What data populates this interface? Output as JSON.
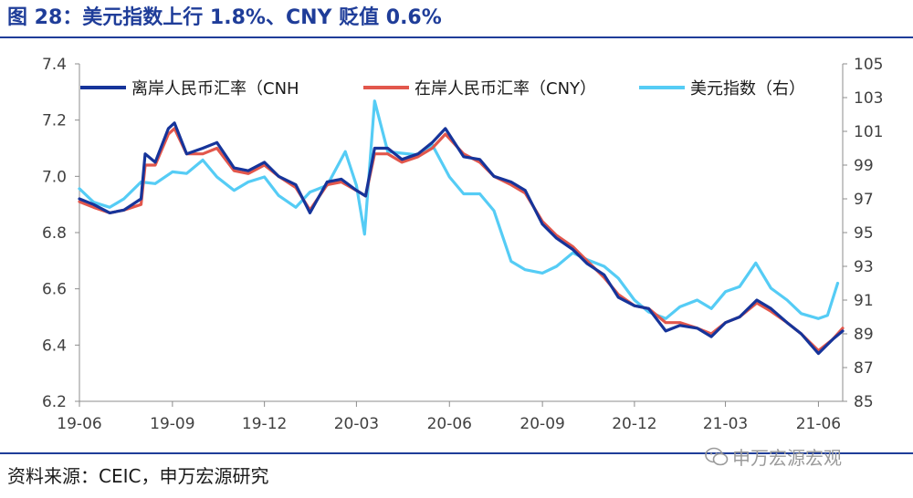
{
  "title": "图 28：美元指数上行 1.8%、CNY 贬值 0.6%",
  "source": "资料来源：CEIC，申万宏源研究",
  "watermark": "申万宏源宏观",
  "chart_data": {
    "type": "line",
    "xlim": [
      "2019-06-01",
      "2021-06-25"
    ],
    "x_ticks": [
      "19-06",
      "19-09",
      "19-12",
      "20-03",
      "20-06",
      "20-09",
      "20-12",
      "21-03",
      "21-06"
    ],
    "ylim_left": [
      6.2,
      7.4
    ],
    "y_ticks_left": [
      "6.2",
      "6.4",
      "6.6",
      "6.8",
      "7.0",
      "7.2",
      "7.4"
    ],
    "ylim_right": [
      85,
      105
    ],
    "y_ticks_right": [
      "85",
      "87",
      "89",
      "91",
      "93",
      "95",
      "97",
      "99",
      "101",
      "103",
      "105"
    ],
    "legend_position": "top",
    "grid": false,
    "series": [
      {
        "name": "离岸人民币汇率（CNH",
        "axis": "left",
        "color": "#16349a",
        "points": [
          [
            "2019-06-01",
            6.92
          ],
          [
            "2019-06-15",
            6.9
          ],
          [
            "2019-07-01",
            6.87
          ],
          [
            "2019-07-15",
            6.88
          ],
          [
            "2019-08-01",
            6.92
          ],
          [
            "2019-08-05",
            7.08
          ],
          [
            "2019-08-15",
            7.05
          ],
          [
            "2019-08-28",
            7.17
          ],
          [
            "2019-09-03",
            7.19
          ],
          [
            "2019-09-15",
            7.08
          ],
          [
            "2019-10-01",
            7.1
          ],
          [
            "2019-10-15",
            7.12
          ],
          [
            "2019-11-01",
            7.03
          ],
          [
            "2019-11-15",
            7.02
          ],
          [
            "2019-12-01",
            7.05
          ],
          [
            "2019-12-15",
            7.0
          ],
          [
            "2020-01-01",
            6.97
          ],
          [
            "2020-01-15",
            6.87
          ],
          [
            "2020-02-01",
            6.98
          ],
          [
            "2020-02-15",
            6.99
          ],
          [
            "2020-03-01",
            6.95
          ],
          [
            "2020-03-10",
            6.93
          ],
          [
            "2020-03-19",
            7.1
          ],
          [
            "2020-04-01",
            7.1
          ],
          [
            "2020-04-15",
            7.06
          ],
          [
            "2020-05-01",
            7.08
          ],
          [
            "2020-05-15",
            7.12
          ],
          [
            "2020-05-28",
            7.17
          ],
          [
            "2020-06-15",
            7.07
          ],
          [
            "2020-07-01",
            7.06
          ],
          [
            "2020-07-15",
            7.0
          ],
          [
            "2020-08-01",
            6.98
          ],
          [
            "2020-08-15",
            6.95
          ],
          [
            "2020-09-01",
            6.83
          ],
          [
            "2020-09-15",
            6.78
          ],
          [
            "2020-10-01",
            6.74
          ],
          [
            "2020-10-15",
            6.69
          ],
          [
            "2020-11-01",
            6.65
          ],
          [
            "2020-11-15",
            6.57
          ],
          [
            "2020-12-01",
            6.54
          ],
          [
            "2020-12-15",
            6.53
          ],
          [
            "2021-01-01",
            6.45
          ],
          [
            "2021-01-15",
            6.47
          ],
          [
            "2021-02-01",
            6.46
          ],
          [
            "2021-02-15",
            6.43
          ],
          [
            "2021-03-01",
            6.48
          ],
          [
            "2021-03-15",
            6.5
          ],
          [
            "2021-04-01",
            6.56
          ],
          [
            "2021-04-15",
            6.53
          ],
          [
            "2021-05-01",
            6.48
          ],
          [
            "2021-05-15",
            6.44
          ],
          [
            "2021-06-01",
            6.37
          ],
          [
            "2021-06-15",
            6.42
          ],
          [
            "2021-06-25",
            6.45
          ]
        ]
      },
      {
        "name": "在岸人民币汇率（CNY）",
        "axis": "left",
        "color": "#e2574c",
        "points": [
          [
            "2019-06-01",
            6.91
          ],
          [
            "2019-06-15",
            6.89
          ],
          [
            "2019-07-01",
            6.87
          ],
          [
            "2019-07-15",
            6.88
          ],
          [
            "2019-08-01",
            6.9
          ],
          [
            "2019-08-05",
            7.04
          ],
          [
            "2019-08-15",
            7.04
          ],
          [
            "2019-08-28",
            7.15
          ],
          [
            "2019-09-03",
            7.17
          ],
          [
            "2019-09-15",
            7.08
          ],
          [
            "2019-10-01",
            7.08
          ],
          [
            "2019-10-15",
            7.1
          ],
          [
            "2019-11-01",
            7.02
          ],
          [
            "2019-11-15",
            7.01
          ],
          [
            "2019-12-01",
            7.04
          ],
          [
            "2019-12-15",
            7.0
          ],
          [
            "2020-01-01",
            6.96
          ],
          [
            "2020-01-15",
            6.88
          ],
          [
            "2020-02-01",
            6.97
          ],
          [
            "2020-02-15",
            6.98
          ],
          [
            "2020-03-01",
            6.95
          ],
          [
            "2020-03-10",
            6.93
          ],
          [
            "2020-03-19",
            7.08
          ],
          [
            "2020-04-01",
            7.08
          ],
          [
            "2020-04-15",
            7.05
          ],
          [
            "2020-05-01",
            7.07
          ],
          [
            "2020-05-15",
            7.1
          ],
          [
            "2020-05-28",
            7.15
          ],
          [
            "2020-06-15",
            7.08
          ],
          [
            "2020-07-01",
            7.05
          ],
          [
            "2020-07-15",
            7.0
          ],
          [
            "2020-08-01",
            6.97
          ],
          [
            "2020-08-15",
            6.94
          ],
          [
            "2020-09-01",
            6.84
          ],
          [
            "2020-09-15",
            6.79
          ],
          [
            "2020-10-01",
            6.75
          ],
          [
            "2020-10-15",
            6.7
          ],
          [
            "2020-11-01",
            6.64
          ],
          [
            "2020-11-15",
            6.58
          ],
          [
            "2020-12-01",
            6.54
          ],
          [
            "2020-12-15",
            6.53
          ],
          [
            "2021-01-01",
            6.48
          ],
          [
            "2021-01-15",
            6.48
          ],
          [
            "2021-02-01",
            6.46
          ],
          [
            "2021-02-15",
            6.44
          ],
          [
            "2021-03-01",
            6.48
          ],
          [
            "2021-03-15",
            6.5
          ],
          [
            "2021-04-01",
            6.55
          ],
          [
            "2021-04-15",
            6.52
          ],
          [
            "2021-05-01",
            6.48
          ],
          [
            "2021-05-15",
            6.44
          ],
          [
            "2021-06-01",
            6.38
          ],
          [
            "2021-06-15",
            6.42
          ],
          [
            "2021-06-25",
            6.46
          ]
        ]
      },
      {
        "name": "美元指数（右）",
        "axis": "right",
        "color": "#55ccf5",
        "points": [
          [
            "2019-06-01",
            97.6
          ],
          [
            "2019-06-15",
            96.8
          ],
          [
            "2019-07-01",
            96.5
          ],
          [
            "2019-07-15",
            97.0
          ],
          [
            "2019-08-01",
            98.0
          ],
          [
            "2019-08-15",
            97.9
          ],
          [
            "2019-09-01",
            98.6
          ],
          [
            "2019-09-15",
            98.5
          ],
          [
            "2019-10-01",
            99.3
          ],
          [
            "2019-10-15",
            98.3
          ],
          [
            "2019-11-01",
            97.5
          ],
          [
            "2019-11-15",
            98.0
          ],
          [
            "2019-12-01",
            98.3
          ],
          [
            "2019-12-15",
            97.2
          ],
          [
            "2020-01-01",
            96.5
          ],
          [
            "2020-01-15",
            97.4
          ],
          [
            "2020-02-01",
            97.8
          ],
          [
            "2020-02-19",
            99.8
          ],
          [
            "2020-03-01",
            97.8
          ],
          [
            "2020-03-09",
            94.9
          ],
          [
            "2020-03-19",
            102.8
          ],
          [
            "2020-04-01",
            99.8
          ],
          [
            "2020-04-15",
            99.7
          ],
          [
            "2020-05-01",
            99.6
          ],
          [
            "2020-05-15",
            100.2
          ],
          [
            "2020-06-01",
            98.3
          ],
          [
            "2020-06-15",
            97.3
          ],
          [
            "2020-07-01",
            97.3
          ],
          [
            "2020-07-15",
            96.3
          ],
          [
            "2020-08-01",
            93.3
          ],
          [
            "2020-08-15",
            92.8
          ],
          [
            "2020-09-01",
            92.6
          ],
          [
            "2020-09-15",
            93.0
          ],
          [
            "2020-10-01",
            93.8
          ],
          [
            "2020-10-15",
            93.4
          ],
          [
            "2020-11-01",
            93.0
          ],
          [
            "2020-11-15",
            92.3
          ],
          [
            "2020-12-01",
            91.0
          ],
          [
            "2020-12-15",
            90.3
          ],
          [
            "2021-01-01",
            89.9
          ],
          [
            "2021-01-15",
            90.6
          ],
          [
            "2021-02-01",
            91.0
          ],
          [
            "2021-02-15",
            90.5
          ],
          [
            "2021-03-01",
            91.5
          ],
          [
            "2021-03-15",
            91.8
          ],
          [
            "2021-03-31",
            93.2
          ],
          [
            "2021-04-15",
            91.7
          ],
          [
            "2021-05-01",
            91.0
          ],
          [
            "2021-05-15",
            90.2
          ],
          [
            "2021-06-01",
            89.9
          ],
          [
            "2021-06-10",
            90.1
          ],
          [
            "2021-06-20",
            92.0
          ]
        ]
      }
    ]
  }
}
